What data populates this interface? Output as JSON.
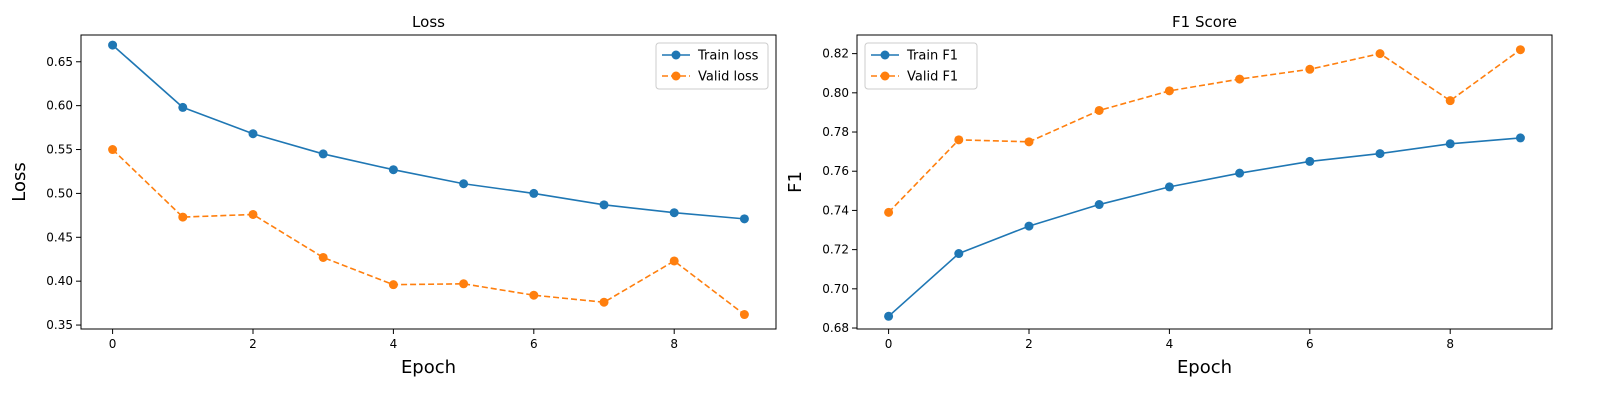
{
  "chart_data": [
    {
      "type": "line",
      "title": "Loss",
      "xlabel": "Epoch",
      "ylabel": "Loss",
      "x": [
        0,
        1,
        2,
        3,
        4,
        5,
        6,
        7,
        8,
        9
      ],
      "xlim": [
        -0.45,
        9.45
      ],
      "ylim": [
        0.3455,
        0.6805
      ],
      "xticks": [
        0,
        2,
        4,
        6,
        8
      ],
      "yticks": [
        0.35,
        0.4,
        0.45,
        0.5,
        0.55,
        0.6,
        0.65
      ],
      "ytick_decimals": 2,
      "legend_position": "upper right",
      "grid": false,
      "series": [
        {
          "name": "Train loss",
          "values": [
            0.669,
            0.598,
            0.568,
            0.545,
            0.527,
            0.511,
            0.5,
            0.487,
            0.478,
            0.471
          ],
          "color": "#1f77b4",
          "style": "solid"
        },
        {
          "name": "Valid loss",
          "values": [
            0.55,
            0.473,
            0.476,
            0.427,
            0.396,
            0.397,
            0.384,
            0.376,
            0.423,
            0.362
          ],
          "color": "#ff7f0e",
          "style": "dashed"
        }
      ]
    },
    {
      "type": "line",
      "title": "F1 Score",
      "xlabel": "Epoch",
      "ylabel": "F1",
      "x": [
        0,
        1,
        2,
        3,
        4,
        5,
        6,
        7,
        8,
        9
      ],
      "xlim": [
        -0.45,
        9.45
      ],
      "ylim": [
        0.6795,
        0.8295
      ],
      "xticks": [
        0,
        2,
        4,
        6,
        8
      ],
      "yticks": [
        0.68,
        0.7,
        0.72,
        0.74,
        0.76,
        0.78,
        0.8,
        0.82
      ],
      "ytick_decimals": 2,
      "legend_position": "upper left",
      "grid": false,
      "series": [
        {
          "name": "Train F1",
          "values": [
            0.686,
            0.718,
            0.732,
            0.743,
            0.752,
            0.759,
            0.765,
            0.769,
            0.774,
            0.777
          ],
          "color": "#1f77b4",
          "style": "solid"
        },
        {
          "name": "Valid F1",
          "values": [
            0.739,
            0.776,
            0.775,
            0.791,
            0.801,
            0.807,
            0.812,
            0.82,
            0.796,
            0.822
          ],
          "color": "#ff7f0e",
          "style": "dashed"
        }
      ]
    }
  ]
}
